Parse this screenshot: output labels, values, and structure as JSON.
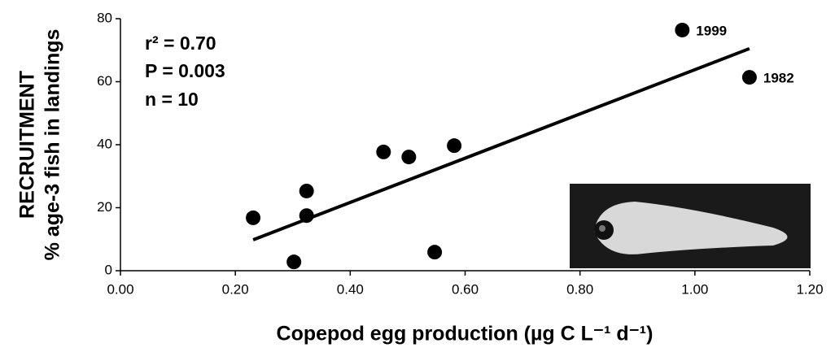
{
  "chart_data": {
    "type": "scatter",
    "x_label": "Copepod egg production (µg C L⁻¹ d⁻¹)",
    "y_label": [
      "RECRUITMENT",
      "% age-3 fish in landings"
    ],
    "annotations": [
      "r² = 0.70",
      "P = 0.003",
      "n = 10"
    ],
    "x": [
      0.231,
      0.302,
      0.324,
      0.324,
      0.458,
      0.502,
      0.547,
      0.581,
      0.978,
      1.095
    ],
    "values": [
      16.8,
      2.8,
      25.3,
      17.5,
      37.7,
      36.1,
      5.9,
      39.7,
      76.4,
      61.4
    ],
    "point_labels": [
      null,
      null,
      null,
      null,
      null,
      null,
      null,
      null,
      "1999",
      "1982"
    ],
    "color": "#000000",
    "trendline": {
      "x": [
        0.231,
        1.095
      ],
      "y": [
        9.8,
        70.5
      ]
    },
    "xlim": [
      0,
      1.2
    ],
    "xticks": [
      {
        "value": 0,
        "label": "0.00"
      },
      {
        "value": 0.2,
        "label": "0.20"
      },
      {
        "value": 0.4,
        "label": "0.40"
      },
      {
        "value": 0.6,
        "label": "0.60"
      },
      {
        "value": 0.8,
        "label": "0.80"
      },
      {
        "value": 1.0,
        "label": "1.00"
      },
      {
        "value": 1.2,
        "label": "1.20"
      }
    ],
    "ylim": [
      0,
      80
    ],
    "yticks": [
      0,
      20,
      40,
      60,
      80
    ]
  }
}
